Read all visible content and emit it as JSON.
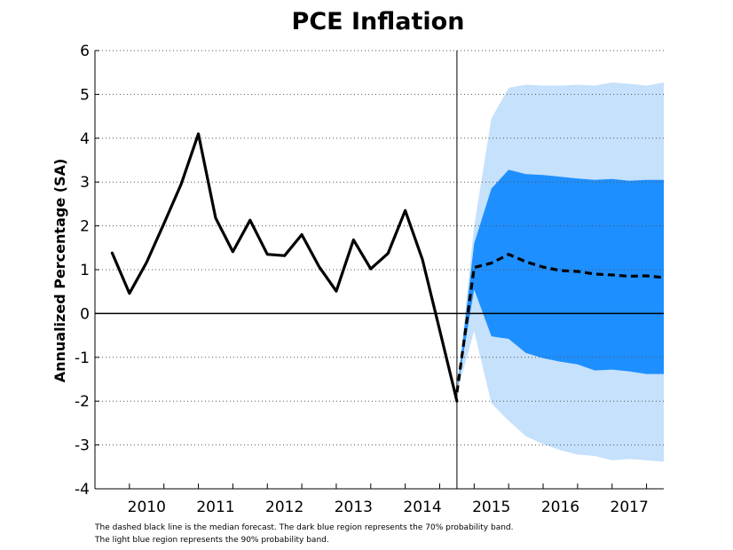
{
  "chart_data": {
    "type": "area",
    "title": "PCE Inflation",
    "xlabel": "",
    "ylabel": "Annualized Percentage (SA)",
    "ylim": [
      -4,
      6
    ],
    "yticks": [
      "6",
      "5",
      "4",
      "3",
      "2",
      "1",
      "0",
      "-1",
      "-2",
      "-3",
      "-4"
    ],
    "xlim": [
      2009.5,
      2017.75
    ],
    "xticks": [
      "2010",
      "2011",
      "2012",
      "2013",
      "2014",
      "2015",
      "2016",
      "2017"
    ],
    "forecast_start": 2014.75,
    "grid": "dotted horizontal",
    "series": [
      {
        "name": "",
        "style": "solid",
        "color": "#000000",
        "points": [
          [
            2009.75,
            1.38
          ],
          [
            2010.0,
            0.46
          ],
          [
            2010.25,
            1.17
          ],
          [
            2010.5,
            2.05
          ],
          [
            2010.75,
            2.95
          ],
          [
            2011.0,
            4.1
          ],
          [
            2011.25,
            2.18
          ],
          [
            2011.5,
            1.41
          ],
          [
            2011.75,
            2.13
          ],
          [
            2012.0,
            1.35
          ],
          [
            2012.25,
            1.32
          ],
          [
            2012.5,
            1.8
          ],
          [
            2012.75,
            1.07
          ],
          [
            2013.0,
            0.51
          ],
          [
            2013.25,
            1.68
          ],
          [
            2013.5,
            1.02
          ],
          [
            2013.75,
            1.37
          ],
          [
            2014.0,
            2.35
          ],
          [
            2014.25,
            1.23
          ],
          [
            2014.5,
            -0.38
          ],
          [
            2014.75,
            -2.0
          ]
        ]
      },
      {
        "name": "",
        "style": "dashed",
        "color": "#000000",
        "points": [
          [
            2014.75,
            -1.8
          ],
          [
            2015.0,
            1.05
          ],
          [
            2015.25,
            1.15
          ],
          [
            2015.5,
            1.35
          ],
          [
            2015.75,
            1.18
          ],
          [
            2016.0,
            1.06
          ],
          [
            2016.25,
            0.98
          ],
          [
            2016.5,
            0.96
          ],
          [
            2016.75,
            0.9
          ],
          [
            2017.0,
            0.88
          ],
          [
            2017.25,
            0.85
          ],
          [
            2017.5,
            0.86
          ],
          [
            2017.75,
            0.82
          ]
        ]
      }
    ],
    "bands": [
      {
        "name": "",
        "color": "#c5e1fb",
        "x": [
          2014.75,
          2015.0,
          2015.25,
          2015.5,
          2015.75,
          2016.0,
          2016.25,
          2016.5,
          2016.75,
          2017.0,
          2017.25,
          2017.5,
          2017.75
        ],
        "lower": [
          -1.8,
          -0.4,
          -2.05,
          -2.45,
          -2.8,
          -2.98,
          -3.12,
          -3.22,
          -3.25,
          -3.35,
          -3.32,
          -3.35,
          -3.38
        ],
        "upper": [
          -1.8,
          2.0,
          4.45,
          5.15,
          5.22,
          5.2,
          5.2,
          5.22,
          5.2,
          5.27,
          5.24,
          5.2,
          5.27
        ]
      },
      {
        "name": "",
        "color": "#1e8fff",
        "x": [
          2014.75,
          2015.0,
          2015.25,
          2015.5,
          2015.75,
          2016.0,
          2016.25,
          2016.5,
          2016.75,
          2017.0,
          2017.25,
          2017.5,
          2017.75
        ],
        "lower": [
          -1.8,
          0.55,
          -0.52,
          -0.58,
          -0.9,
          -1.02,
          -1.1,
          -1.16,
          -1.3,
          -1.28,
          -1.32,
          -1.38,
          -1.38
        ],
        "upper": [
          -1.8,
          1.6,
          2.85,
          3.28,
          3.18,
          3.16,
          3.12,
          3.08,
          3.05,
          3.07,
          3.03,
          3.05,
          3.05
        ]
      }
    ],
    "annotations": [
      "The dashed black line is the median forecast. The dark blue region represents the 70% probability band.",
      "The light blue region represents the 90% probability band."
    ]
  }
}
